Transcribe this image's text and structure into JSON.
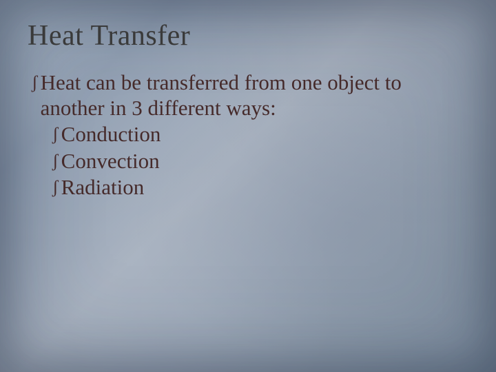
{
  "slide": {
    "title": "Heat Transfer",
    "main_bullet": "Heat can be transferred from one object to another in 3 different ways:",
    "sub_bullets": [
      "Conduction",
      "Convection",
      "Radiation"
    ],
    "bullet_glyph": "ʃ",
    "colors": {
      "title": "#3a3a3a",
      "body": "#452a2a",
      "bg_gradient_start": "#9aa9bb",
      "bg_gradient_end": "#7e8ea0"
    },
    "fonts": {
      "title_size_pt": 32,
      "body_size_pt": 23,
      "family": "Georgia, serif"
    }
  }
}
